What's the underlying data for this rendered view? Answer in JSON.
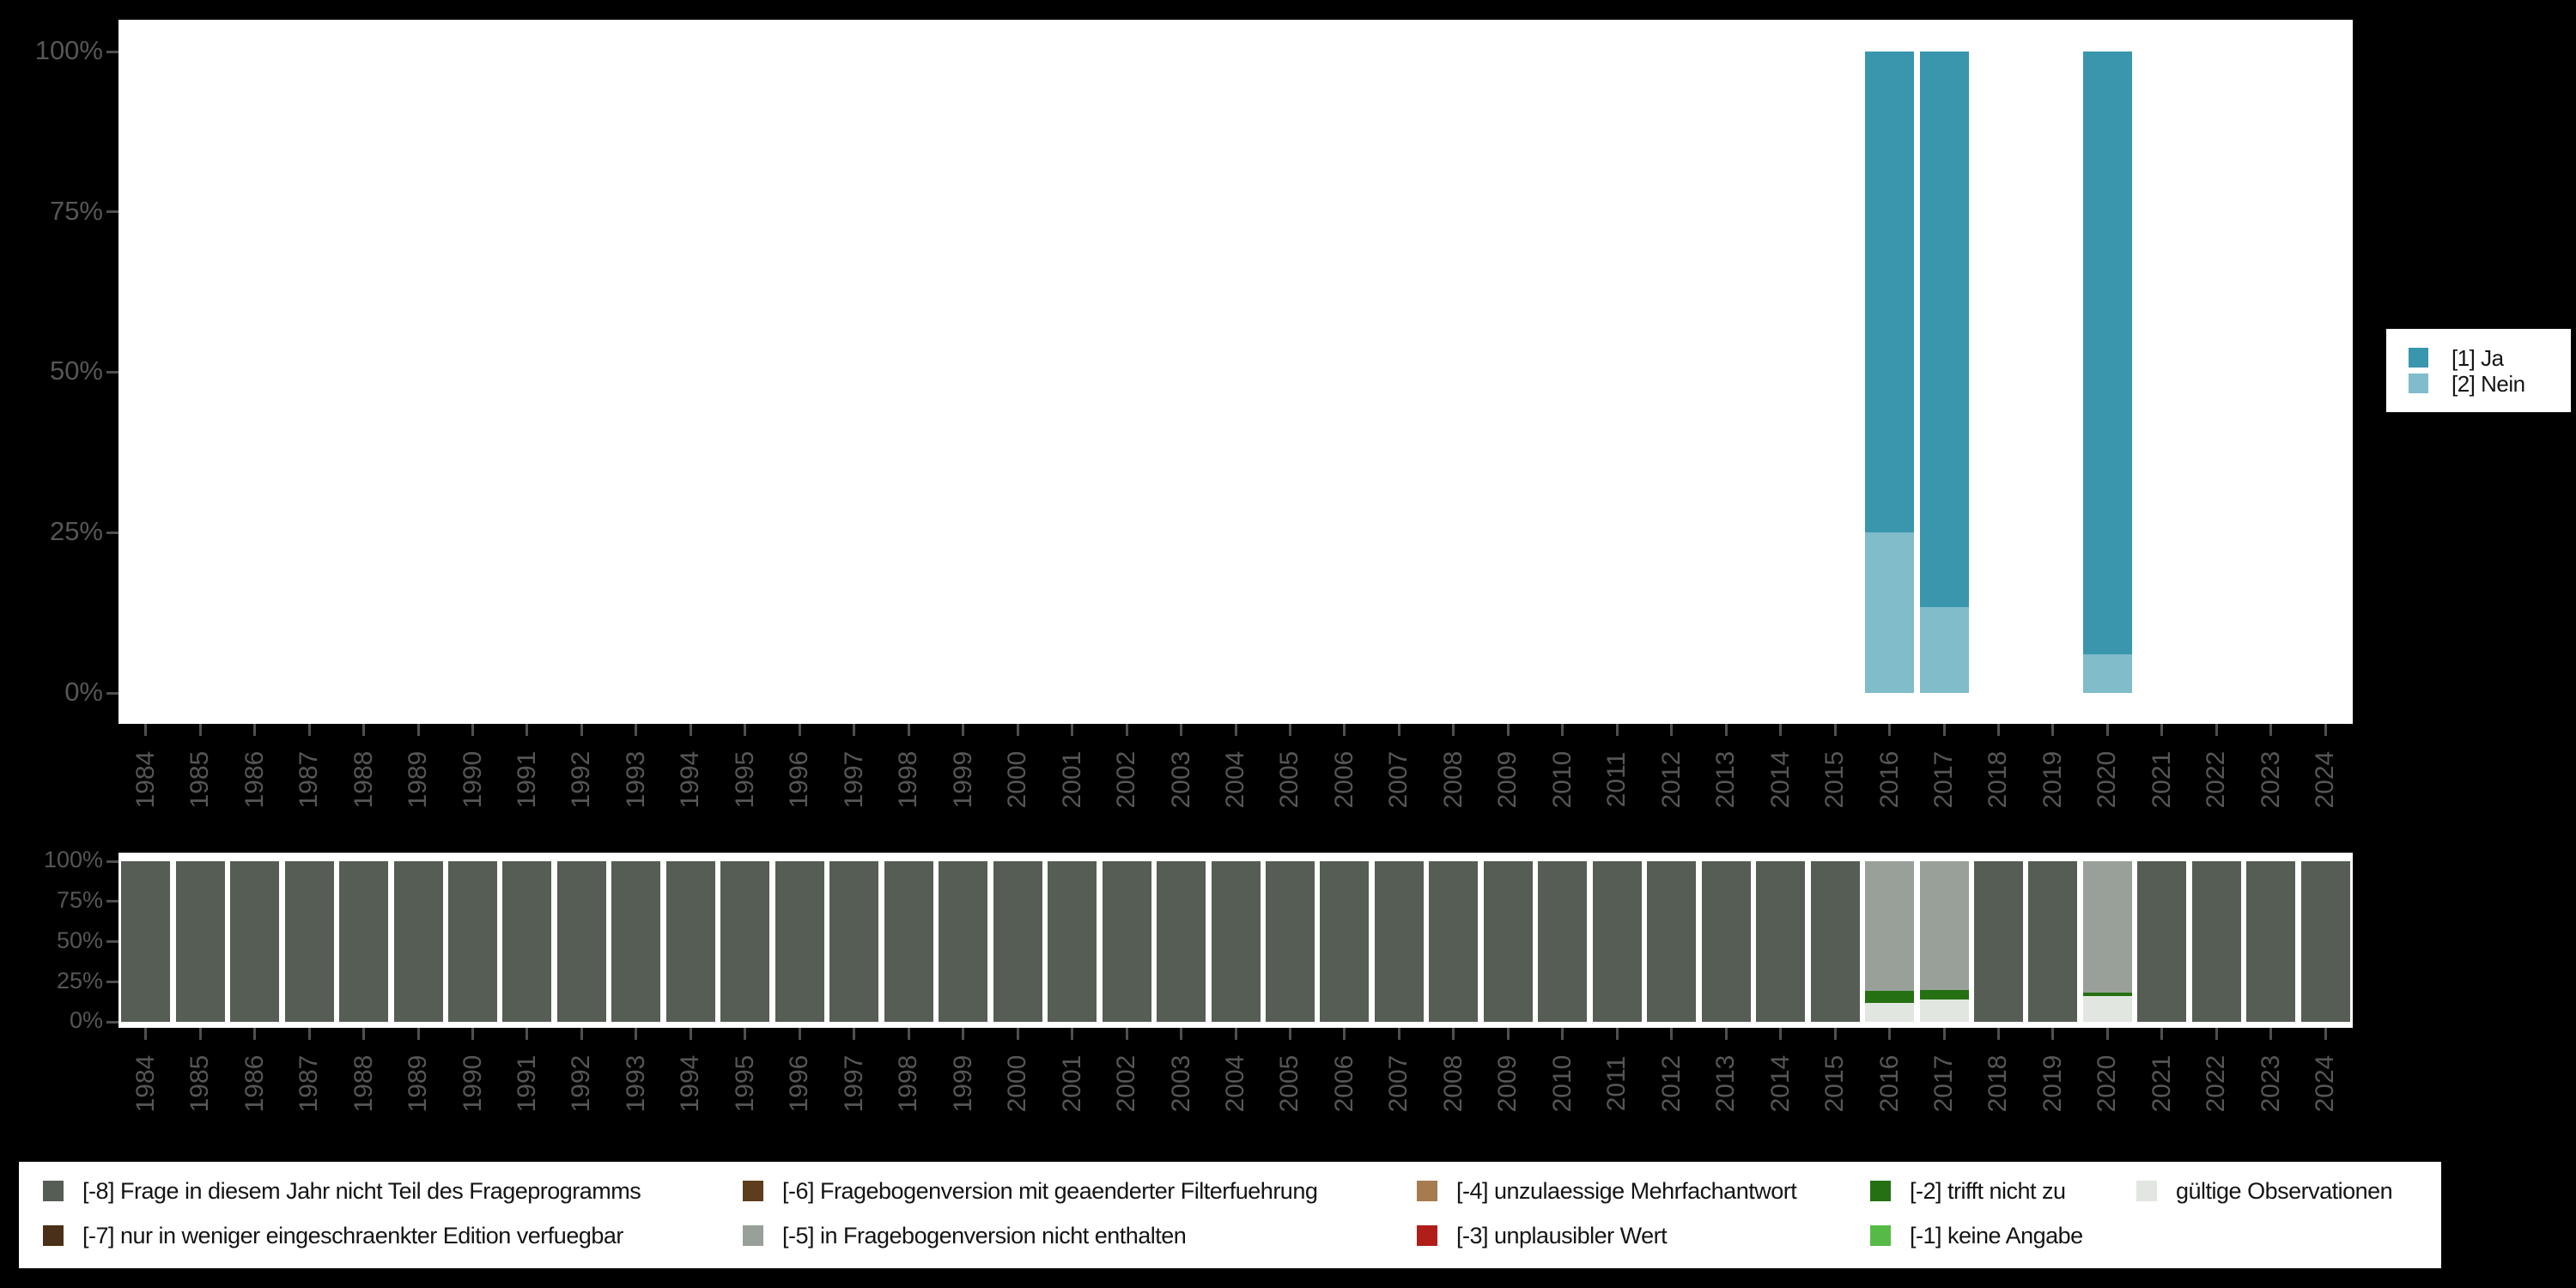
{
  "page": {
    "background_color": "#000000",
    "plot_background_color": "#ffffff",
    "axis_text_color": "#565656",
    "tick_color": "#4f4f4f"
  },
  "years": [
    "1984",
    "1985",
    "1986",
    "1987",
    "1988",
    "1989",
    "1990",
    "1991",
    "1992",
    "1993",
    "1994",
    "1995",
    "1996",
    "1997",
    "1998",
    "1999",
    "2000",
    "2001",
    "2002",
    "2003",
    "2004",
    "2005",
    "2006",
    "2007",
    "2008",
    "2009",
    "2010",
    "2011",
    "2012",
    "2013",
    "2014",
    "2015",
    "2016",
    "2017",
    "2018",
    "2019",
    "2020",
    "2021",
    "2022",
    "2023",
    "2024"
  ],
  "chart_data": [
    {
      "id": "valid-answers-by-year",
      "type": "bar",
      "stacked": true,
      "title": "",
      "xlabel": "",
      "ylabel": "",
      "ylim": [
        0,
        100
      ],
      "grid": false,
      "legend_position": "right",
      "categories": [
        "1984",
        "1985",
        "1986",
        "1987",
        "1988",
        "1989",
        "1990",
        "1991",
        "1992",
        "1993",
        "1994",
        "1995",
        "1996",
        "1997",
        "1998",
        "1999",
        "2000",
        "2001",
        "2002",
        "2003",
        "2004",
        "2005",
        "2006",
        "2007",
        "2008",
        "2009",
        "2010",
        "2011",
        "2012",
        "2013",
        "2014",
        "2015",
        "2016",
        "2017",
        "2018",
        "2019",
        "2020",
        "2021",
        "2022",
        "2023",
        "2024"
      ],
      "y_ticks": [
        {
          "label": "0%",
          "value": 0
        },
        {
          "label": "25%",
          "value": 25
        },
        {
          "label": "50%",
          "value": 50
        },
        {
          "label": "75%",
          "value": 75
        },
        {
          "label": "100%",
          "value": 100
        }
      ],
      "series": [
        {
          "key": "ja",
          "label": "[1] Ja",
          "color": "#3996ad"
        },
        {
          "key": "nein",
          "label": "[2] Nein",
          "color": "#80bcca"
        }
      ],
      "bars": {
        "default": [],
        "2016": [
          [
            "ja",
            75.0
          ],
          [
            "nein",
            25.0
          ]
        ],
        "2017": [
          [
            "ja",
            86.6
          ],
          [
            "nein",
            13.4
          ]
        ],
        "2020": [
          [
            "ja",
            94.0
          ],
          [
            "nein",
            6.0
          ]
        ]
      }
    },
    {
      "id": "missing-values-by-year",
      "type": "bar",
      "stacked": true,
      "title": "",
      "xlabel": "",
      "ylabel": "",
      "ylim": [
        0,
        100
      ],
      "grid": false,
      "legend_position": "bottom",
      "categories": [
        "1984",
        "1985",
        "1986",
        "1987",
        "1988",
        "1989",
        "1990",
        "1991",
        "1992",
        "1993",
        "1994",
        "1995",
        "1996",
        "1997",
        "1998",
        "1999",
        "2000",
        "2001",
        "2002",
        "2003",
        "2004",
        "2005",
        "2006",
        "2007",
        "2008",
        "2009",
        "2010",
        "2011",
        "2012",
        "2013",
        "2014",
        "2015",
        "2016",
        "2017",
        "2018",
        "2019",
        "2020",
        "2021",
        "2022",
        "2023",
        "2024"
      ],
      "y_ticks": [
        {
          "label": "0%",
          "value": 0
        },
        {
          "label": "25%",
          "value": 25
        },
        {
          "label": "50%",
          "value": 50
        },
        {
          "label": "75%",
          "value": 75
        },
        {
          "label": "100%",
          "value": 100
        }
      ],
      "series": [
        {
          "key": "-8",
          "label": "[-8] Frage in diesem Jahr nicht Teil des Frageprogramms",
          "color": "#555d54"
        },
        {
          "key": "-7",
          "label": "[-7] nur in weniger eingeschraenkter Edition verfuegbar",
          "color": "#4a3018"
        },
        {
          "key": "-6",
          "label": "[-6] Fragebogenversion mit geaenderter Filterfuehrung",
          "color": "#5e3c1e"
        },
        {
          "key": "-5",
          "label": "[-5] in Fragebogenversion nicht enthalten",
          "color": "#99a099"
        },
        {
          "key": "-4",
          "label": "[-4] unzulaessige Mehrfachantwort",
          "color": "#a57c50"
        },
        {
          "key": "-3",
          "label": "[-3] unplausibler Wert",
          "color": "#b01e1a"
        },
        {
          "key": "-2",
          "label": "[-2] trifft nicht zu",
          "color": "#247012"
        },
        {
          "key": "-1",
          "label": "[-1] keine Angabe",
          "color": "#56bb46"
        },
        {
          "key": "valid",
          "label": "gültige Observationen",
          "color": "#e1e7e0"
        }
      ],
      "bars": {
        "default": [
          [
            "-8",
            100
          ]
        ],
        "2016": [
          [
            "-5",
            80.5
          ],
          [
            "-2",
            7.7
          ],
          [
            "valid",
            11.8
          ]
        ],
        "2017": [
          [
            "-5",
            80.2
          ],
          [
            "-2",
            6.1
          ],
          [
            "valid",
            13.7
          ]
        ],
        "2020": [
          [
            "-5",
            81.7
          ],
          [
            "-2",
            2.1
          ],
          [
            "valid",
            16.2
          ]
        ]
      }
    }
  ]
}
